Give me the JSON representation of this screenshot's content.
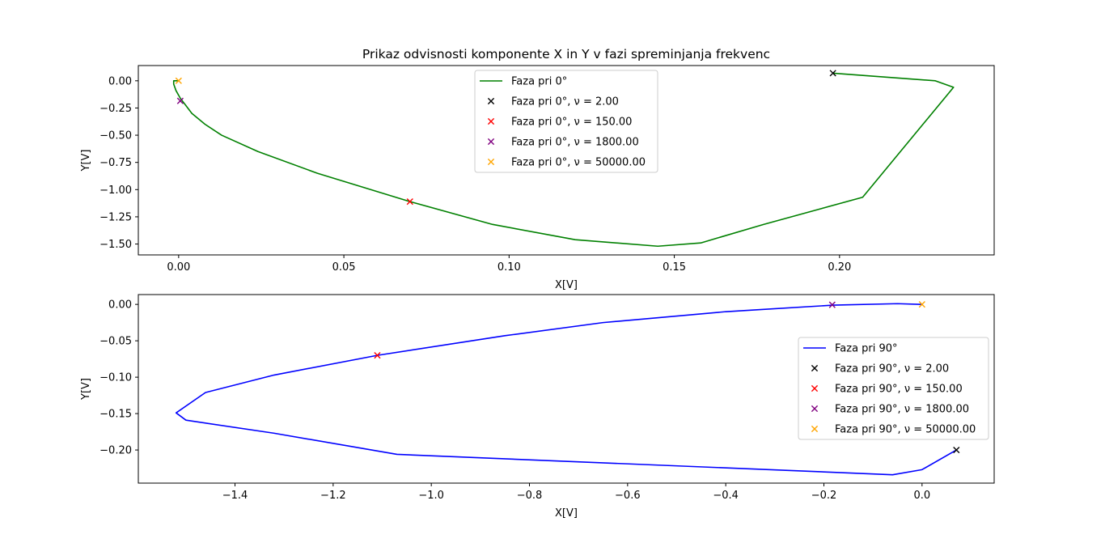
{
  "chart_data": [
    {
      "type": "line",
      "title": "Prikaz odvisnosti komponente X in Y v fazi spreminjanja frekvenc",
      "xlabel": "X[V]",
      "ylabel": "Y[V]",
      "xlim": [
        -0.0122,
        0.2468
      ],
      "ylim": [
        -1.6,
        0.14
      ],
      "xticks": [
        0.0,
        0.05,
        0.1,
        0.15,
        0.2
      ],
      "xtick_labels": [
        "0.00",
        "0.05",
        "0.10",
        "0.15",
        "0.20"
      ],
      "yticks": [
        0.0,
        -0.25,
        -0.5,
        -0.75,
        -1.0,
        -1.25,
        -1.5
      ],
      "ytick_labels": [
        "0.00",
        "−0.25",
        "−0.50",
        "−0.75",
        "−1.00",
        "−1.25",
        "−1.50"
      ],
      "grid": false,
      "legend_position": "top-center",
      "series": [
        {
          "name": "Faza pri 0°",
          "color": "#008000",
          "style": "line",
          "x": [
            0.198,
            0.229,
            0.2345,
            0.207,
            0.177,
            0.158,
            0.145,
            0.12,
            0.095,
            0.07,
            0.042,
            0.024,
            0.013,
            0.008,
            0.004,
            0.002,
            0.0005,
            -0.0008,
            -0.0015,
            -0.0015,
            0.0
          ],
          "y": [
            0.07,
            0.0,
            -0.06,
            -1.07,
            -1.32,
            -1.49,
            -1.52,
            -1.46,
            -1.32,
            -1.11,
            -0.85,
            -0.65,
            -0.5,
            -0.4,
            -0.3,
            -0.22,
            -0.16,
            -0.09,
            -0.03,
            0.0,
            0.0
          ]
        },
        {
          "name": "Faza pri 0°, ν = 2.00",
          "color": "#000000",
          "style": "marker",
          "x": [
            0.198
          ],
          "y": [
            0.07
          ]
        },
        {
          "name": "Faza pri 0°, ν = 150.00",
          "color": "#ff0000",
          "style": "marker",
          "x": [
            0.07
          ],
          "y": [
            -1.11
          ]
        },
        {
          "name": "Faza pri 0°, ν = 1800.00",
          "color": "#800080",
          "style": "marker",
          "x": [
            0.0005
          ],
          "y": [
            -0.185
          ]
        },
        {
          "name": "Faza pri 0°, ν = 50000.00",
          "color": "#ffa500",
          "style": "marker",
          "x": [
            0.0
          ],
          "y": [
            0.0
          ]
        }
      ],
      "legend": {
        "items": [
          {
            "kind": "line",
            "color": "#008000",
            "label": "Faza pri 0°"
          },
          {
            "kind": "marker",
            "color": "#000000",
            "label": "Faza pri 0°, ν = 2.00"
          },
          {
            "kind": "marker",
            "color": "#ff0000",
            "label": "Faza pri 0°, ν = 150.00"
          },
          {
            "kind": "marker",
            "color": "#800080",
            "label": "Faza pri 0°, ν = 1800.00"
          },
          {
            "kind": "marker",
            "color": "#ffa500",
            "label": "Faza pri 0°, ν = 50000.00"
          }
        ]
      }
    },
    {
      "type": "line",
      "title": "",
      "xlabel": "X[V]",
      "ylabel": "Y[V]",
      "xlim": [
        -1.597,
        0.147
      ],
      "ylim": [
        -0.2455,
        0.0135
      ],
      "xticks": [
        -1.4,
        -1.2,
        -1.0,
        -0.8,
        -0.6,
        -0.4,
        -0.2,
        0.0
      ],
      "xtick_labels": [
        "−1.4",
        "−1.2",
        "−1.0",
        "−0.8",
        "−0.6",
        "−0.4",
        "−0.2",
        "0.0"
      ],
      "yticks": [
        0.0,
        -0.05,
        -0.1,
        -0.15,
        -0.2
      ],
      "ytick_labels": [
        "0.00",
        "−0.05",
        "−0.10",
        "−0.15",
        "−0.20"
      ],
      "grid": false,
      "legend_position": "center-right",
      "series": [
        {
          "name": "Faza pri 90°",
          "color": "#0000ff",
          "style": "line",
          "x": [
            0.07,
            0.0,
            -0.06,
            -1.07,
            -1.32,
            -1.5,
            -1.52,
            -1.46,
            -1.32,
            -1.11,
            -0.85,
            -0.65,
            -0.4,
            -0.18,
            -0.05,
            0.0
          ],
          "y": [
            -0.2,
            -0.227,
            -0.234,
            -0.206,
            -0.177,
            -0.159,
            -0.149,
            -0.121,
            -0.097,
            -0.07,
            -0.043,
            -0.025,
            -0.01,
            -0.001,
            0.001,
            0.0
          ]
        },
        {
          "name": "Faza pri 90°, ν = 2.00",
          "color": "#000000",
          "style": "marker",
          "x": [
            0.07
          ],
          "y": [
            -0.2
          ]
        },
        {
          "name": "Faza pri 90°, ν = 150.00",
          "color": "#ff0000",
          "style": "marker",
          "x": [
            -1.11
          ],
          "y": [
            -0.07
          ]
        },
        {
          "name": "Faza pri 90°, ν = 1800.00",
          "color": "#800080",
          "style": "marker",
          "x": [
            -0.183
          ],
          "y": [
            -0.0005
          ]
        },
        {
          "name": "Faza pri 90°, ν = 50000.00",
          "color": "#ffa500",
          "style": "marker",
          "x": [
            0.0
          ],
          "y": [
            0.0
          ]
        }
      ],
      "legend": {
        "items": [
          {
            "kind": "line",
            "color": "#0000ff",
            "label": "Faza pri 90°"
          },
          {
            "kind": "marker",
            "color": "#000000",
            "label": "Faza pri 90°, ν = 2.00"
          },
          {
            "kind": "marker",
            "color": "#ff0000",
            "label": "Faza pri 90°, ν = 150.00"
          },
          {
            "kind": "marker",
            "color": "#800080",
            "label": "Faza pri 90°, ν = 1800.00"
          },
          {
            "kind": "marker",
            "color": "#ffa500",
            "label": "Faza pri 90°, ν = 50000.00"
          }
        ]
      }
    }
  ]
}
